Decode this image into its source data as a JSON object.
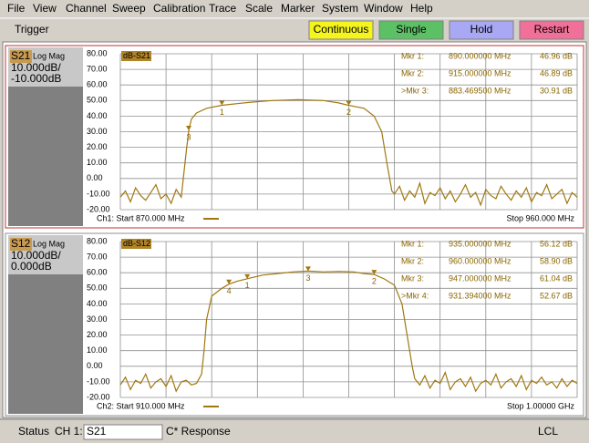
{
  "menu": [
    "File",
    "View",
    "Channel",
    "Sweep",
    "Calibration",
    "Trace",
    "Scale",
    "Marker",
    "System",
    "Window",
    "Help"
  ],
  "toolbar": {
    "label": "Trigger",
    "buttons": [
      "Continuous",
      "Single",
      "Hold",
      "Restart"
    ]
  },
  "panels": [
    {
      "param": "S21",
      "format": "Log Mag",
      "scale": "10.000dB/",
      "ref": "-10.000dB",
      "trace_label": "dB-S21",
      "ylim": [
        -20,
        80
      ],
      "xlim": [
        870,
        960
      ],
      "yticks": [
        {
          "value": 80,
          "label": "80.00"
        },
        {
          "value": 70,
          "label": "70.00"
        },
        {
          "value": 60,
          "label": "60.00"
        },
        {
          "value": 50,
          "label": "50.00"
        },
        {
          "value": 40,
          "label": "40.00"
        },
        {
          "value": 30,
          "label": "30.00"
        },
        {
          "value": 20,
          "label": "20.00"
        },
        {
          "value": 10,
          "label": "10.00"
        },
        {
          "value": 0,
          "label": "0.00"
        },
        {
          "value": -10,
          "label": "-10.00"
        },
        {
          "value": -20,
          "label": "-20.00"
        }
      ],
      "start": "Ch1: Start  870.000 MHz",
      "stop": "Stop  960.000 MHz",
      "markers": [
        {
          "label": "Mkr 1:",
          "num": "1",
          "freq": {
            "value": 890,
            "label": "890.000000 MHz"
          },
          "level": {
            "value": 46.96,
            "label": "46.96 dB"
          }
        },
        {
          "label": "Mkr 2:",
          "num": "2",
          "freq": {
            "value": 915,
            "label": "915.000000 MHz"
          },
          "level": {
            "value": 46.89,
            "label": "46.89 dB"
          }
        },
        {
          "label": ">Mkr 3:",
          "num": "3",
          "freq": {
            "value": 883.4695,
            "label": "883.469500 MHz"
          },
          "level": {
            "value": 30.91,
            "label": "30.91 dB"
          }
        }
      ],
      "trace": {
        "x": [
          870,
          871,
          872,
          873,
          874,
          875,
          876,
          877,
          878,
          879,
          880,
          881,
          882,
          883,
          883.5,
          884,
          885,
          887,
          890,
          893,
          896,
          900,
          905,
          910,
          913,
          915,
          918,
          920,
          921.5,
          922.5,
          923.5,
          924,
          925,
          926,
          927,
          928,
          929,
          930,
          931,
          932,
          933,
          934,
          935,
          936,
          937,
          938,
          939,
          940,
          941,
          942,
          943,
          944,
          945,
          946,
          947,
          948,
          949,
          950,
          951,
          952,
          953,
          954,
          955,
          956,
          957,
          958,
          959,
          960
        ],
        "y": [
          -12,
          -8,
          -15,
          -6,
          -11,
          -14,
          -9,
          -4,
          -13,
          -10,
          -16,
          -7,
          -12,
          18,
          31,
          38,
          42,
          45,
          46.96,
          48,
          49,
          50,
          50.5,
          50,
          48.5,
          46.89,
          45,
          40,
          30,
          10,
          -8,
          -10,
          -5,
          -14,
          -8,
          -12,
          -3,
          -16,
          -9,
          -11,
          -6,
          -13,
          -8,
          -15,
          -10,
          -4,
          -12,
          -9,
          -17,
          -7,
          -11,
          -13,
          -5,
          -10,
          -14,
          -8,
          -12,
          -6,
          -15,
          -9,
          -11,
          -4,
          -13,
          -10,
          -7,
          -16,
          -9,
          -12
        ]
      }
    },
    {
      "param": "S12",
      "format": "Log Mag",
      "scale": "10.000dB/",
      "ref": "0.000dB",
      "trace_label": "dB-S12",
      "ylim": [
        -20,
        80
      ],
      "xlim": [
        910,
        1000
      ],
      "yticks": [
        {
          "value": 80,
          "label": "80.00"
        },
        {
          "value": 70,
          "label": "70.00"
        },
        {
          "value": 60,
          "label": "60.00"
        },
        {
          "value": 50,
          "label": "50.00"
        },
        {
          "value": 40,
          "label": "40.00"
        },
        {
          "value": 30,
          "label": "30.00"
        },
        {
          "value": 20,
          "label": "20.00"
        },
        {
          "value": 10,
          "label": "10.00"
        },
        {
          "value": 0,
          "label": "0.00"
        },
        {
          "value": -10,
          "label": "-10.00"
        },
        {
          "value": -20,
          "label": "-20.00"
        }
      ],
      "start": "Ch2: Start  910.000 MHz",
      "stop": "Stop  1.00000 GHz",
      "markers": [
        {
          "label": "Mkr 1:",
          "num": "1",
          "freq": {
            "value": 935,
            "label": "935.000000 MHz"
          },
          "level": {
            "value": 56.12,
            "label": "56.12 dB"
          }
        },
        {
          "label": "Mkr 2:",
          "num": "2",
          "freq": {
            "value": 960,
            "label": "960.000000 MHz"
          },
          "level": {
            "value": 58.9,
            "label": "58.90 dB"
          }
        },
        {
          "label": "Mkr 3:",
          "num": "3",
          "freq": {
            "value": 947,
            "label": "947.000000 MHz"
          },
          "level": {
            "value": 61.04,
            "label": "61.04 dB"
          }
        },
        {
          "label": ">Mkr 4:",
          "num": "4",
          "freq": {
            "value": 931.394,
            "label": "931.394000 MHz"
          },
          "level": {
            "value": 52.67,
            "label": "52.67 dB"
          }
        }
      ],
      "trace": {
        "x": [
          910,
          911,
          912,
          913,
          914,
          915,
          916,
          917,
          918,
          919,
          920,
          921,
          922,
          923,
          924,
          925,
          926,
          926.5,
          927,
          928,
          930,
          931.394,
          933,
          935,
          938,
          941,
          944,
          947,
          950,
          953,
          956,
          958,
          960,
          962,
          964,
          965.5,
          966.5,
          967.5,
          968,
          969,
          970,
          971,
          972,
          973,
          974,
          975,
          976,
          977,
          978,
          979,
          980,
          981,
          982,
          983,
          984,
          985,
          986,
          987,
          988,
          989,
          990,
          991,
          992,
          993,
          994,
          995,
          996,
          997,
          998,
          999,
          1000
        ],
        "y": [
          -12,
          -7,
          -15,
          -9,
          -11,
          -5,
          -14,
          -10,
          -8,
          -13,
          -6,
          -16,
          -10,
          -9,
          -12,
          -11,
          -5,
          10,
          30,
          45,
          50,
          52.67,
          54.5,
          56.12,
          58.5,
          59.5,
          60.5,
          61.04,
          60.5,
          60.8,
          60.5,
          59.5,
          58.9,
          56,
          52,
          40,
          20,
          0,
          -8,
          -12,
          -6,
          -14,
          -9,
          -11,
          -4,
          -15,
          -10,
          -8,
          -13,
          -7,
          -16,
          -11,
          -9,
          -12,
          -5,
          -14,
          -10,
          -8,
          -13,
          -6,
          -15,
          -9,
          -11,
          -7,
          -12,
          -10,
          -14,
          -8,
          -13,
          -9,
          -11
        ]
      }
    }
  ],
  "status": {
    "label": "Status",
    "channel": "CH 1:",
    "param": "S21",
    "cal": "C* Response",
    "mode": "LCL"
  }
}
